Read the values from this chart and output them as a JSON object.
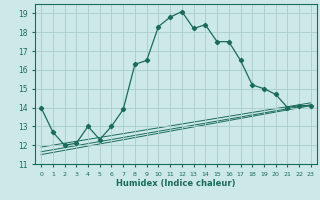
{
  "xlabel": "Humidex (Indice chaleur)",
  "background_color": "#cce8e8",
  "grid_color": "#aacccc",
  "line_color": "#1a6b5a",
  "xlim": [
    -0.5,
    23.5
  ],
  "ylim": [
    11,
    19.5
  ],
  "yticks": [
    11,
    12,
    13,
    14,
    15,
    16,
    17,
    18,
    19
  ],
  "xticks": [
    0,
    1,
    2,
    3,
    4,
    5,
    6,
    7,
    8,
    9,
    10,
    11,
    12,
    13,
    14,
    15,
    16,
    17,
    18,
    19,
    20,
    21,
    22,
    23
  ],
  "main_y": [
    14.0,
    12.7,
    12.0,
    12.1,
    13.0,
    12.3,
    13.0,
    13.9,
    16.3,
    16.5,
    18.3,
    18.8,
    19.1,
    18.2,
    18.4,
    17.5,
    17.5,
    16.5,
    15.2,
    15.0,
    14.7,
    14.0,
    14.1,
    14.1
  ],
  "reg_lines": [
    [
      11.5,
      14.1
    ],
    [
      11.65,
      14.15
    ],
    [
      11.9,
      14.25
    ]
  ]
}
